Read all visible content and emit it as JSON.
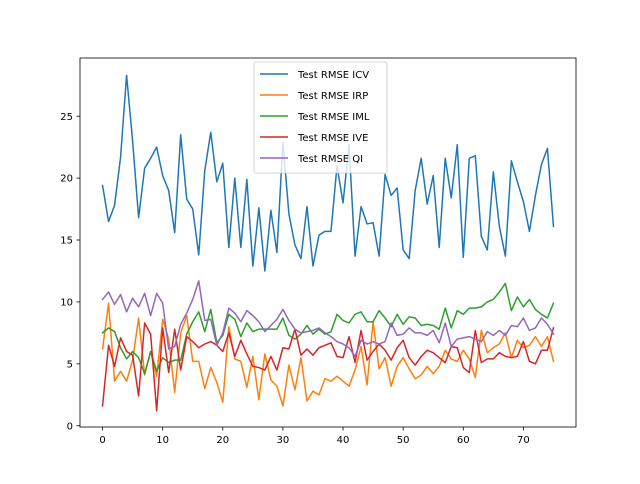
{
  "chart_data": {
    "type": "line",
    "title": "",
    "xlabel": "",
    "ylabel": "",
    "xlim": [
      -3.75,
      78.75
    ],
    "ylim": [
      -0.1,
      29.7
    ],
    "xticks": [
      0,
      10,
      20,
      30,
      40,
      50,
      60,
      70
    ],
    "yticks": [
      0,
      5,
      10,
      15,
      20,
      25
    ],
    "grid": false,
    "legend_position": "top-center",
    "series": [
      {
        "name": "Test RMSE ICV",
        "color": "#1f77b4",
        "x": [
          0,
          1,
          2,
          3,
          4,
          5,
          6,
          7,
          8,
          9,
          10,
          11,
          12,
          13,
          14,
          15,
          16,
          17,
          18,
          19,
          20,
          21,
          22,
          23,
          24,
          25,
          26,
          27,
          28,
          29,
          30,
          31,
          32,
          33,
          34,
          35,
          36,
          37,
          38,
          39,
          40,
          41,
          42,
          43,
          44,
          45,
          46,
          47,
          48,
          49,
          50,
          51,
          52,
          53,
          54,
          55,
          56,
          57,
          58,
          59,
          60,
          61,
          62,
          63,
          64,
          65,
          66,
          67,
          68,
          69,
          70,
          71,
          72,
          73,
          74,
          75
        ],
        "y": [
          19.4,
          16.5,
          17.8,
          21.7,
          28.3,
          23.0,
          16.8,
          20.8,
          21.6,
          22.5,
          20.2,
          19.0,
          15.6,
          23.5,
          18.3,
          17.5,
          13.8,
          20.6,
          23.7,
          19.7,
          21.2,
          14.4,
          20.0,
          14.4,
          19.9,
          12.9,
          17.6,
          12.5,
          17.4,
          14.0,
          22.9,
          17.1,
          14.6,
          13.5,
          17.7,
          12.9,
          15.4,
          15.7,
          15.7,
          21.0,
          18.0,
          22.7,
          13.7,
          17.7,
          16.3,
          16.4,
          13.7,
          20.3,
          18.6,
          19.2,
          14.2,
          13.5,
          19.0,
          21.6,
          17.9,
          20.2,
          14.4,
          21.6,
          18.4,
          22.7,
          13.6,
          21.6,
          21.8,
          15.3,
          14.2,
          20.5,
          16.1,
          13.7,
          21.4,
          19.7,
          18.1,
          15.7,
          18.6,
          21.1,
          22.4,
          16.1
        ]
      },
      {
        "name": "Test RMSE IRP",
        "color": "#ff7f0e",
        "x": [
          0,
          1,
          2,
          3,
          4,
          5,
          6,
          7,
          8,
          9,
          10,
          11,
          12,
          13,
          14,
          15,
          16,
          17,
          18,
          19,
          20,
          21,
          22,
          23,
          24,
          25,
          26,
          27,
          28,
          29,
          30,
          31,
          32,
          33,
          34,
          35,
          36,
          37,
          38,
          39,
          40,
          41,
          42,
          43,
          44,
          45,
          46,
          47,
          48,
          49,
          50,
          51,
          52,
          53,
          54,
          55,
          56,
          57,
          58,
          59,
          60,
          61,
          62,
          63,
          64,
          65,
          66,
          67,
          68,
          69,
          70,
          71,
          72,
          73,
          74,
          75
        ],
        "y": [
          6.2,
          9.9,
          3.6,
          4.4,
          3.6,
          5.3,
          8.7,
          4.1,
          6.0,
          4.0,
          8.6,
          7.0,
          2.7,
          7.5,
          8.9,
          5.2,
          5.2,
          3.0,
          4.7,
          3.5,
          1.9,
          8.0,
          5.4,
          5.2,
          3.1,
          5.6,
          2.1,
          5.8,
          3.7,
          3.2,
          1.6,
          4.9,
          2.9,
          5.5,
          2.0,
          2.8,
          2.5,
          3.8,
          3.6,
          4.0,
          3.6,
          3.2,
          4.5,
          6.4,
          3.3,
          8.4,
          4.6,
          5.5,
          3.2,
          4.8,
          5.5,
          4.6,
          3.8,
          4.1,
          4.8,
          4.2,
          4.8,
          6.1,
          5.4,
          5.2,
          6.1,
          5.4,
          3.9,
          7.7,
          5.9,
          6.3,
          6.6,
          7.5,
          5.5,
          6.9,
          6.3,
          6.5,
          7.2,
          6.4,
          7.2,
          5.2
        ]
      },
      {
        "name": "Test RMSE IML",
        "color": "#2ca02c",
        "x": [
          0,
          1,
          2,
          3,
          4,
          5,
          6,
          7,
          8,
          9,
          10,
          11,
          12,
          13,
          14,
          15,
          16,
          17,
          18,
          19,
          20,
          21,
          22,
          23,
          24,
          25,
          26,
          27,
          28,
          29,
          30,
          31,
          32,
          33,
          34,
          35,
          36,
          37,
          38,
          39,
          40,
          41,
          42,
          43,
          44,
          45,
          46,
          47,
          48,
          49,
          50,
          51,
          52,
          53,
          54,
          55,
          56,
          57,
          58,
          59,
          60,
          61,
          62,
          63,
          64,
          65,
          66,
          67,
          68,
          69,
          70,
          71,
          72,
          73,
          74,
          75
        ],
        "y": [
          7.5,
          7.9,
          7.6,
          6.3,
          5.4,
          6.0,
          5.5,
          4.2,
          6.0,
          4.4,
          5.5,
          5.1,
          5.3,
          5.3,
          7.4,
          8.4,
          9.2,
          7.6,
          9.4,
          6.7,
          7.3,
          9.0,
          8.6,
          7.2,
          8.3,
          7.6,
          7.8,
          7.8,
          7.8,
          7.8,
          8.7,
          7.3,
          7.0,
          7.4,
          8.1,
          7.4,
          7.8,
          7.4,
          7.6,
          9.0,
          8.5,
          8.3,
          9.0,
          9.2,
          8.4,
          8.4,
          9.3,
          8.7,
          8.0,
          9.0,
          8.2,
          8.8,
          8.7,
          8.1,
          8.2,
          8.1,
          7.8,
          9.5,
          7.9,
          9.3,
          9.0,
          9.5,
          9.5,
          9.6,
          10.0,
          10.2,
          10.8,
          11.5,
          9.3,
          10.4,
          9.6,
          10.2,
          9.4,
          9.0,
          8.7,
          9.9
        ]
      },
      {
        "name": "Test RMSE IVE",
        "color": "#d62728",
        "x": [
          0,
          1,
          2,
          3,
          4,
          5,
          6,
          7,
          8,
          9,
          10,
          11,
          12,
          13,
          14,
          15,
          16,
          17,
          18,
          19,
          20,
          21,
          22,
          23,
          24,
          25,
          26,
          27,
          28,
          29,
          30,
          31,
          32,
          33,
          34,
          35,
          36,
          37,
          38,
          39,
          40,
          41,
          42,
          43,
          44,
          45,
          46,
          47,
          48,
          49,
          50,
          51,
          52,
          53,
          54,
          55,
          56,
          57,
          58,
          59,
          60,
          61,
          62,
          63,
          64,
          65,
          66,
          67,
          68,
          69,
          70,
          71,
          72,
          73,
          74,
          75
        ],
        "y": [
          1.6,
          6.5,
          4.8,
          7.1,
          6.0,
          5.7,
          2.4,
          8.3,
          7.4,
          1.2,
          7.9,
          4.3,
          7.8,
          4.5,
          7.2,
          6.8,
          6.3,
          6.6,
          6.8,
          6.5,
          6.0,
          7.5,
          5.6,
          6.9,
          5.8,
          4.8,
          4.7,
          4.5,
          5.6,
          4.5,
          6.3,
          6.2,
          7.8,
          5.7,
          6.2,
          5.7,
          6.3,
          6.5,
          6.7,
          5.6,
          5.5,
          7.2,
          5.1,
          7.7,
          5.3,
          6.0,
          6.6,
          6.1,
          5.3,
          6.3,
          6.9,
          5.5,
          4.9,
          5.6,
          6.1,
          5.9,
          5.5,
          5.1,
          6.4,
          6.3,
          4.7,
          4.3,
          7.7,
          5.1,
          5.4,
          5.4,
          5.9,
          5.6,
          5.5,
          5.6,
          6.8,
          5.2,
          5.0,
          6.1,
          6.1,
          7.9
        ]
      },
      {
        "name": "Test RMSE QI",
        "color": "#9467bd",
        "x": [
          0,
          1,
          2,
          3,
          4,
          5,
          6,
          7,
          8,
          9,
          10,
          11,
          12,
          13,
          14,
          15,
          16,
          17,
          18,
          19,
          20,
          21,
          22,
          23,
          24,
          25,
          26,
          27,
          28,
          29,
          30,
          31,
          32,
          33,
          34,
          35,
          36,
          37,
          38,
          39,
          40,
          41,
          42,
          43,
          44,
          45,
          46,
          47,
          48,
          49,
          50,
          51,
          52,
          53,
          54,
          55,
          56,
          57,
          58,
          59,
          60,
          61,
          62,
          63,
          64,
          65,
          66,
          67,
          68,
          69,
          70,
          71,
          72,
          73,
          74,
          75
        ],
        "y": [
          10.2,
          10.8,
          9.8,
          10.6,
          9.2,
          10.3,
          9.6,
          10.7,
          8.9,
          10.7,
          9.9,
          6.2,
          6.4,
          8.2,
          9.1,
          10.2,
          11.7,
          8.5,
          8.6,
          6.5,
          7.5,
          9.5,
          9.1,
          8.4,
          9.3,
          8.9,
          8.4,
          7.6,
          8.1,
          8.6,
          9.4,
          8.5,
          7.8,
          7.5,
          7.6,
          7.7,
          7.9,
          7.5,
          7.2,
          6.8,
          6.6,
          6.3,
          5.6,
          6.9,
          6.6,
          6.8,
          6.6,
          6.8,
          8.3,
          7.3,
          7.4,
          7.9,
          7.5,
          7.5,
          7.3,
          7.7,
          6.7,
          8.3,
          6.4,
          7.0,
          7.1,
          7.2,
          7.0,
          6.8,
          7.6,
          7.3,
          7.7,
          7.3,
          8.1,
          8.0,
          8.7,
          7.7,
          7.9,
          8.7,
          8.2,
          7.4
        ]
      }
    ]
  }
}
